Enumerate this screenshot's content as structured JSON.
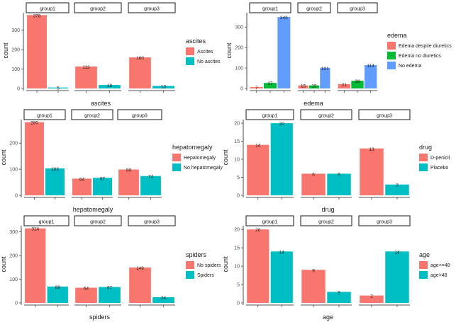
{
  "chart_data": [
    {
      "type": "bar",
      "facets": [
        "group1",
        "group2",
        "group3"
      ],
      "xlabel": "ascites",
      "ylabel": "count",
      "ylim": [
        0,
        390
      ],
      "yticks": [
        0,
        100,
        200,
        300
      ],
      "legend": {
        "title": "ascites",
        "position": "right",
        "entries": [
          {
            "label": "Ascites",
            "color": "#F8766D"
          },
          {
            "label": "No ascites",
            "color": "#00BFC4"
          }
        ]
      },
      "series": [
        {
          "name": "Ascites",
          "color": "#F8766D",
          "values": [
            378,
            113,
            160
          ]
        },
        {
          "name": "No ascites",
          "color": "#00BFC4",
          "values": [
            5,
            18,
            13
          ]
        }
      ]
    },
    {
      "type": "bar",
      "facets": [
        "group1",
        "group2",
        "group3"
      ],
      "xlabel": "edema",
      "ylabel": "count",
      "ylim": [
        0,
        370
      ],
      "yticks": [
        0,
        100,
        200,
        300
      ],
      "legend": {
        "title": "edema",
        "position": "right",
        "entries": [
          {
            "label": "Edema despite diuretics",
            "color": "#F8766D"
          },
          {
            "label": "Edema no diuretics",
            "color": "#00BA38"
          },
          {
            "label": "No edema",
            "color": "#619CFF"
          }
        ]
      },
      "series": [
        {
          "name": "Edema despite diuretics",
          "color": "#F8766D",
          "values": [
            7,
            15,
            21
          ]
        },
        {
          "name": "Edema no diuretics",
          "color": "#00BA38",
          "values": [
            27,
            15,
            38
          ]
        },
        {
          "name": "No edema",
          "color": "#619CFF",
          "values": [
            349,
            101,
            114
          ]
        }
      ]
    },
    {
      "type": "bar",
      "facets": [
        "group1",
        "group2",
        "group3"
      ],
      "xlabel": "hepatomegaly",
      "ylabel": "count",
      "ylim": [
        0,
        290
      ],
      "yticks": [
        0,
        100,
        200
      ],
      "legend": {
        "title": "hepatomegaly",
        "position": "right",
        "entries": [
          {
            "label": "Hepatomegaly",
            "color": "#F8766D"
          },
          {
            "label": "No hepatomegaly",
            "color": "#00BFC4"
          }
        ]
      },
      "series": [
        {
          "name": "Hepatomegaly",
          "color": "#F8766D",
          "values": [
            280,
            64,
            99
          ]
        },
        {
          "name": "No hepatomegaly",
          "color": "#00BFC4",
          "values": [
            103,
            67,
            74
          ]
        }
      ]
    },
    {
      "type": "bar",
      "facets": [
        "group1",
        "group2",
        "group3"
      ],
      "xlabel": "drug",
      "ylabel": "count",
      "ylim": [
        0,
        21
      ],
      "yticks": [
        0,
        5,
        10,
        15,
        20
      ],
      "legend": {
        "title": "drug",
        "position": "right",
        "entries": [
          {
            "label": "D-penicil",
            "color": "#F8766D"
          },
          {
            "label": "Placebo",
            "color": "#00BFC4"
          }
        ]
      },
      "series": [
        {
          "name": "D-penicil",
          "color": "#F8766D",
          "values": [
            14,
            6,
            13
          ]
        },
        {
          "name": "Placebo",
          "color": "#00BFC4",
          "values": [
            20,
            6,
            3
          ]
        }
      ]
    },
    {
      "type": "bar",
      "facets": [
        "group1",
        "group2",
        "group3"
      ],
      "xlabel": "spiders",
      "ylabel": "count",
      "ylim": [
        0,
        325
      ],
      "yticks": [
        0,
        100,
        200,
        300
      ],
      "legend": {
        "title": "spiders",
        "position": "right",
        "entries": [
          {
            "label": "No spiders",
            "color": "#F8766D"
          },
          {
            "label": "Spiders",
            "color": "#00BFC4"
          }
        ]
      },
      "series": [
        {
          "name": "No spiders",
          "color": "#F8766D",
          "values": [
            314,
            64,
            149
          ]
        },
        {
          "name": "Spiders",
          "color": "#00BFC4",
          "values": [
            69,
            67,
            24
          ]
        }
      ]
    },
    {
      "type": "bar",
      "facets": [
        "group1",
        "group2",
        "group3"
      ],
      "xlabel": "age",
      "ylabel": "count",
      "ylim": [
        0,
        21
      ],
      "yticks": [
        0,
        5,
        10,
        15,
        20
      ],
      "legend": {
        "title": "age",
        "position": "right",
        "entries": [
          {
            "label": "age<=48",
            "color": "#F8766D"
          },
          {
            "label": "age>48",
            "color": "#00BFC4"
          }
        ]
      },
      "series": [
        {
          "name": "age<=48",
          "color": "#F8766D",
          "values": [
            20,
            9,
            2
          ]
        },
        {
          "name": "age>48",
          "color": "#00BFC4",
          "values": [
            14,
            3,
            14
          ]
        }
      ]
    }
  ]
}
